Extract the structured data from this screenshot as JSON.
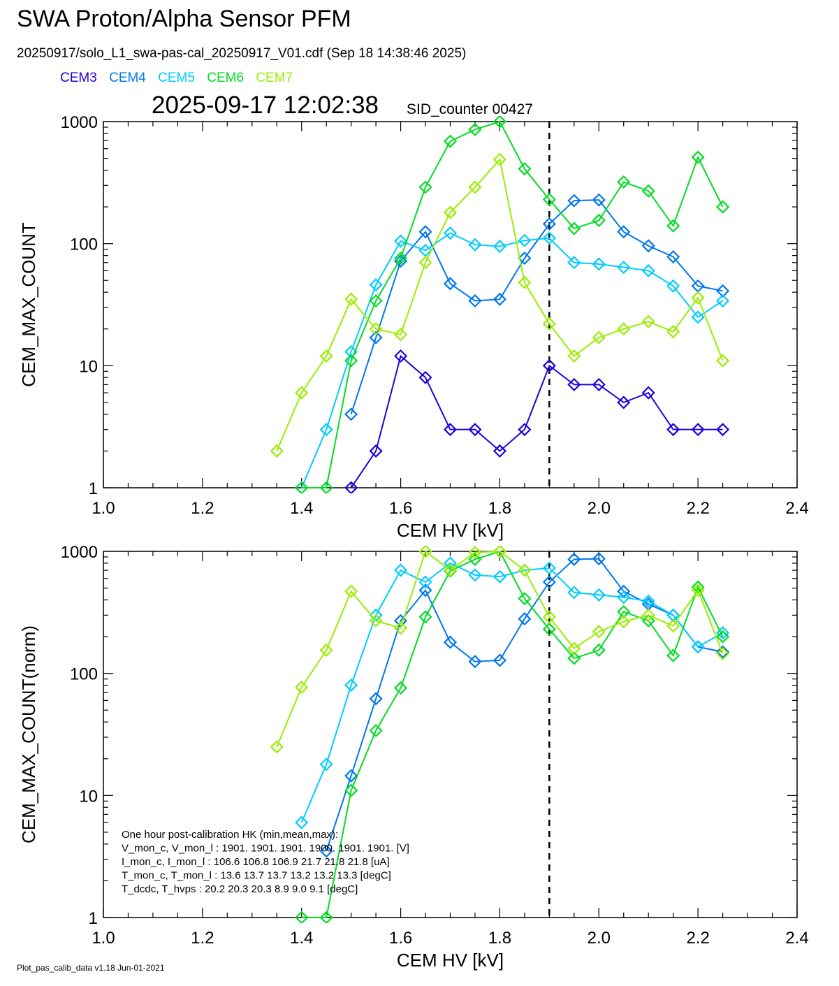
{
  "header": {
    "title": "SWA Proton/Alpha Sensor PFM",
    "file_line": "20250917/solo_L1_swa-pas-cal_20250917_V01.cdf  (Sep 18 14:38:46 2025)",
    "timestamp": "2025-09-17 12:02:38",
    "sid_counter": "SID_counter 00427"
  },
  "legend": [
    {
      "name": "CEM3",
      "color": "#2200dd"
    },
    {
      "name": "CEM4",
      "color": "#0077ee"
    },
    {
      "name": "CEM5",
      "color": "#00ccff"
    },
    {
      "name": "CEM6",
      "color": "#00dd22"
    },
    {
      "name": "CEM7",
      "color": "#99ee00"
    }
  ],
  "footer": "Plot_pas_calib_data v1.18 Jun-01-2021",
  "hk_box": {
    "lines": [
      "One hour post-calibration HK (min,mean,max):",
      "V_mon_c, V_mon_l :   1901.   1901.   1901.      1900.   1901.   1901.  [V]",
      "I_mon_c,  I_mon_l :    106.6   106.8   106.9          21.7    21.8    21.8   [uA]",
      "T_mon_c, T_mon_l :     13.6    13.7    13.7          13.2    13.2    13.3   [degC]",
      "T_dcdc,    T_hvps :      20.2    20.3    20.3            8.9     9.0     9.1  [degC]"
    ]
  },
  "chart_data": [
    {
      "type": "line",
      "xlabel": "CEM HV [kV]",
      "ylabel": "CEM_MAX_COUNT",
      "xlim": [
        1.0,
        2.4
      ],
      "ylim": [
        1,
        1000
      ],
      "yscale": "log",
      "xticks": [
        "1.0",
        "1.2",
        "1.4",
        "1.6",
        "1.8",
        "2.0",
        "2.2",
        "2.4"
      ],
      "yticks": [
        "1",
        "10",
        "100",
        "1000"
      ],
      "vline_x": 1.9,
      "marker": "diamond",
      "series": [
        {
          "name": "CEM3",
          "color": "#2200dd",
          "x": [
            1.5,
            1.55,
            1.6,
            1.65,
            1.7,
            1.75,
            1.8,
            1.85,
            1.9,
            1.95,
            2.0,
            2.05,
            2.1,
            2.15,
            2.2,
            2.25
          ],
          "y": [
            1,
            2,
            12,
            8,
            3,
            3,
            2,
            3,
            10,
            7,
            7,
            5,
            6,
            3,
            3,
            3
          ]
        },
        {
          "name": "CEM4",
          "color": "#0077ee",
          "x": [
            1.5,
            1.55,
            1.6,
            1.65,
            1.7,
            1.75,
            1.8,
            1.85,
            1.9,
            1.95,
            2.0,
            2.05,
            2.1,
            2.15,
            2.2,
            2.25
          ],
          "y": [
            4,
            17,
            72,
            125,
            47,
            34,
            35,
            76,
            145,
            225,
            228,
            125,
            96,
            78,
            45,
            41
          ]
        },
        {
          "name": "CEM5",
          "color": "#00ccff",
          "x": [
            1.4,
            1.45,
            1.5,
            1.55,
            1.6,
            1.65,
            1.7,
            1.75,
            1.8,
            1.85,
            1.9,
            1.95,
            2.0,
            2.05,
            2.1,
            2.15,
            2.2,
            2.25
          ],
          "y": [
            1,
            3,
            13,
            46,
            105,
            88,
            122,
            98,
            95,
            106,
            111,
            70,
            68,
            64,
            60,
            45,
            25,
            34
          ]
        },
        {
          "name": "CEM6",
          "color": "#00dd22",
          "x": [
            1.4,
            1.45,
            1.5,
            1.55,
            1.6,
            1.65,
            1.7,
            1.75,
            1.8,
            1.85,
            1.9,
            1.95,
            2.0,
            2.05,
            2.1,
            2.15,
            2.2,
            2.25
          ],
          "y": [
            1,
            1,
            11,
            34,
            76,
            290,
            690,
            860,
            1000,
            410,
            230,
            133,
            155,
            320,
            270,
            140,
            510,
            200
          ]
        },
        {
          "name": "CEM7",
          "color": "#99ee00",
          "x": [
            1.35,
            1.4,
            1.45,
            1.5,
            1.55,
            1.6,
            1.65,
            1.7,
            1.75,
            1.8,
            1.85,
            1.9,
            1.95,
            2.0,
            2.05,
            2.1,
            2.15,
            2.2,
            2.25
          ],
          "y": [
            2,
            6,
            12,
            35,
            20,
            18,
            70,
            180,
            290,
            490,
            48,
            22,
            12,
            17,
            20,
            23,
            19,
            36,
            11
          ]
        }
      ]
    },
    {
      "type": "line",
      "xlabel": "CEM HV [kV]",
      "ylabel": "CEM_MAX_COUNT(norm)",
      "xlim": [
        1.0,
        2.4
      ],
      "ylim": [
        1,
        1000
      ],
      "yscale": "log",
      "xticks": [
        "1.0",
        "1.2",
        "1.4",
        "1.6",
        "1.8",
        "2.0",
        "2.2",
        "2.4"
      ],
      "yticks": [
        "1",
        "10",
        "100",
        "1000"
      ],
      "vline_x": 1.9,
      "marker": "diamond",
      "series": [
        {
          "name": "CEM4",
          "color": "#0077ee",
          "x": [
            1.45,
            1.5,
            1.55,
            1.6,
            1.65,
            1.7,
            1.75,
            1.8,
            1.85,
            1.9,
            1.95,
            2.0,
            2.05,
            2.1,
            2.15,
            2.2,
            2.25
          ],
          "y": [
            3.5,
            14.5,
            62,
            270,
            480,
            180,
            125,
            128,
            280,
            560,
            860,
            870,
            470,
            370,
            300,
            165,
            150
          ]
        },
        {
          "name": "CEM5",
          "color": "#00ccff",
          "x": [
            1.4,
            1.45,
            1.5,
            1.55,
            1.6,
            1.65,
            1.7,
            1.75,
            1.8,
            1.85,
            1.9,
            1.95,
            2.0,
            2.05,
            2.1,
            2.15,
            2.2,
            2.25
          ],
          "y": [
            6,
            18,
            80,
            300,
            700,
            560,
            800,
            640,
            620,
            700,
            730,
            460,
            440,
            420,
            390,
            300,
            165,
            215
          ]
        },
        {
          "name": "CEM6",
          "color": "#00dd22",
          "x": [
            1.4,
            1.45,
            1.5,
            1.55,
            1.6,
            1.65,
            1.7,
            1.75,
            1.8,
            1.85,
            1.9,
            1.95,
            2.0,
            2.05,
            2.1,
            2.15,
            2.2,
            2.25
          ],
          "y": [
            1,
            1,
            11,
            34,
            76,
            290,
            690,
            860,
            1000,
            410,
            230,
            133,
            155,
            320,
            270,
            140,
            510,
            200
          ]
        },
        {
          "name": "CEM7",
          "color": "#99ee00",
          "x": [
            1.35,
            1.4,
            1.45,
            1.5,
            1.55,
            1.6,
            1.65,
            1.7,
            1.75,
            1.8,
            1.85,
            1.9,
            1.95,
            2.0,
            2.05,
            2.1,
            2.15,
            2.2,
            2.25
          ],
          "y": [
            25,
            77,
            155,
            470,
            270,
            235,
            1000,
            700,
            980,
            1000,
            700,
            290,
            160,
            220,
            265,
            300,
            245,
            480,
            145
          ]
        }
      ]
    }
  ]
}
